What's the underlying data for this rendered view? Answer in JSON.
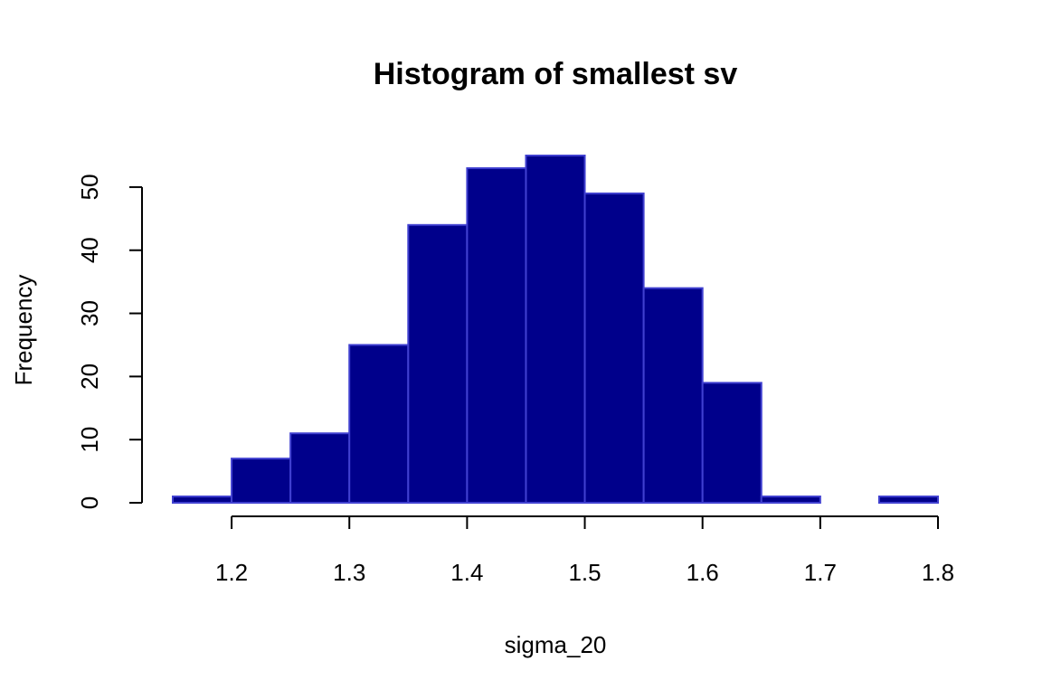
{
  "chart_data": {
    "type": "bar",
    "title": "Histogram of smallest sv",
    "xlabel": "sigma_20",
    "ylabel": "Frequency",
    "bins": [
      {
        "start": 1.15,
        "end": 1.2,
        "count": 1
      },
      {
        "start": 1.2,
        "end": 1.25,
        "count": 7
      },
      {
        "start": 1.25,
        "end": 1.3,
        "count": 11
      },
      {
        "start": 1.3,
        "end": 1.35,
        "count": 25
      },
      {
        "start": 1.35,
        "end": 1.4,
        "count": 44
      },
      {
        "start": 1.4,
        "end": 1.45,
        "count": 53
      },
      {
        "start": 1.45,
        "end": 1.5,
        "count": 55
      },
      {
        "start": 1.5,
        "end": 1.55,
        "count": 49
      },
      {
        "start": 1.55,
        "end": 1.6,
        "count": 34
      },
      {
        "start": 1.6,
        "end": 1.65,
        "count": 19
      },
      {
        "start": 1.65,
        "end": 1.7,
        "count": 1
      },
      {
        "start": 1.7,
        "end": 1.75,
        "count": 0
      },
      {
        "start": 1.75,
        "end": 1.8,
        "count": 1
      }
    ],
    "xlim": [
      1.15,
      1.8
    ],
    "ylim": [
      0,
      55
    ],
    "x_ticks": [
      {
        "value": 1.2,
        "label": "1.2"
      },
      {
        "value": 1.3,
        "label": "1.3"
      },
      {
        "value": 1.4,
        "label": "1.4"
      },
      {
        "value": 1.5,
        "label": "1.5"
      },
      {
        "value": 1.6,
        "label": "1.6"
      },
      {
        "value": 1.7,
        "label": "1.7"
      },
      {
        "value": 1.8,
        "label": "1.8"
      }
    ],
    "y_ticks": [
      {
        "value": 0,
        "label": "0"
      },
      {
        "value": 10,
        "label": "10"
      },
      {
        "value": 20,
        "label": "20"
      },
      {
        "value": 30,
        "label": "30"
      },
      {
        "value": 40,
        "label": "40"
      },
      {
        "value": 50,
        "label": "50"
      }
    ],
    "grid": false,
    "legend": "none",
    "colors": {
      "bar_fill": "#00008B",
      "bar_border": "#4040D0",
      "axis": "#000000"
    }
  }
}
